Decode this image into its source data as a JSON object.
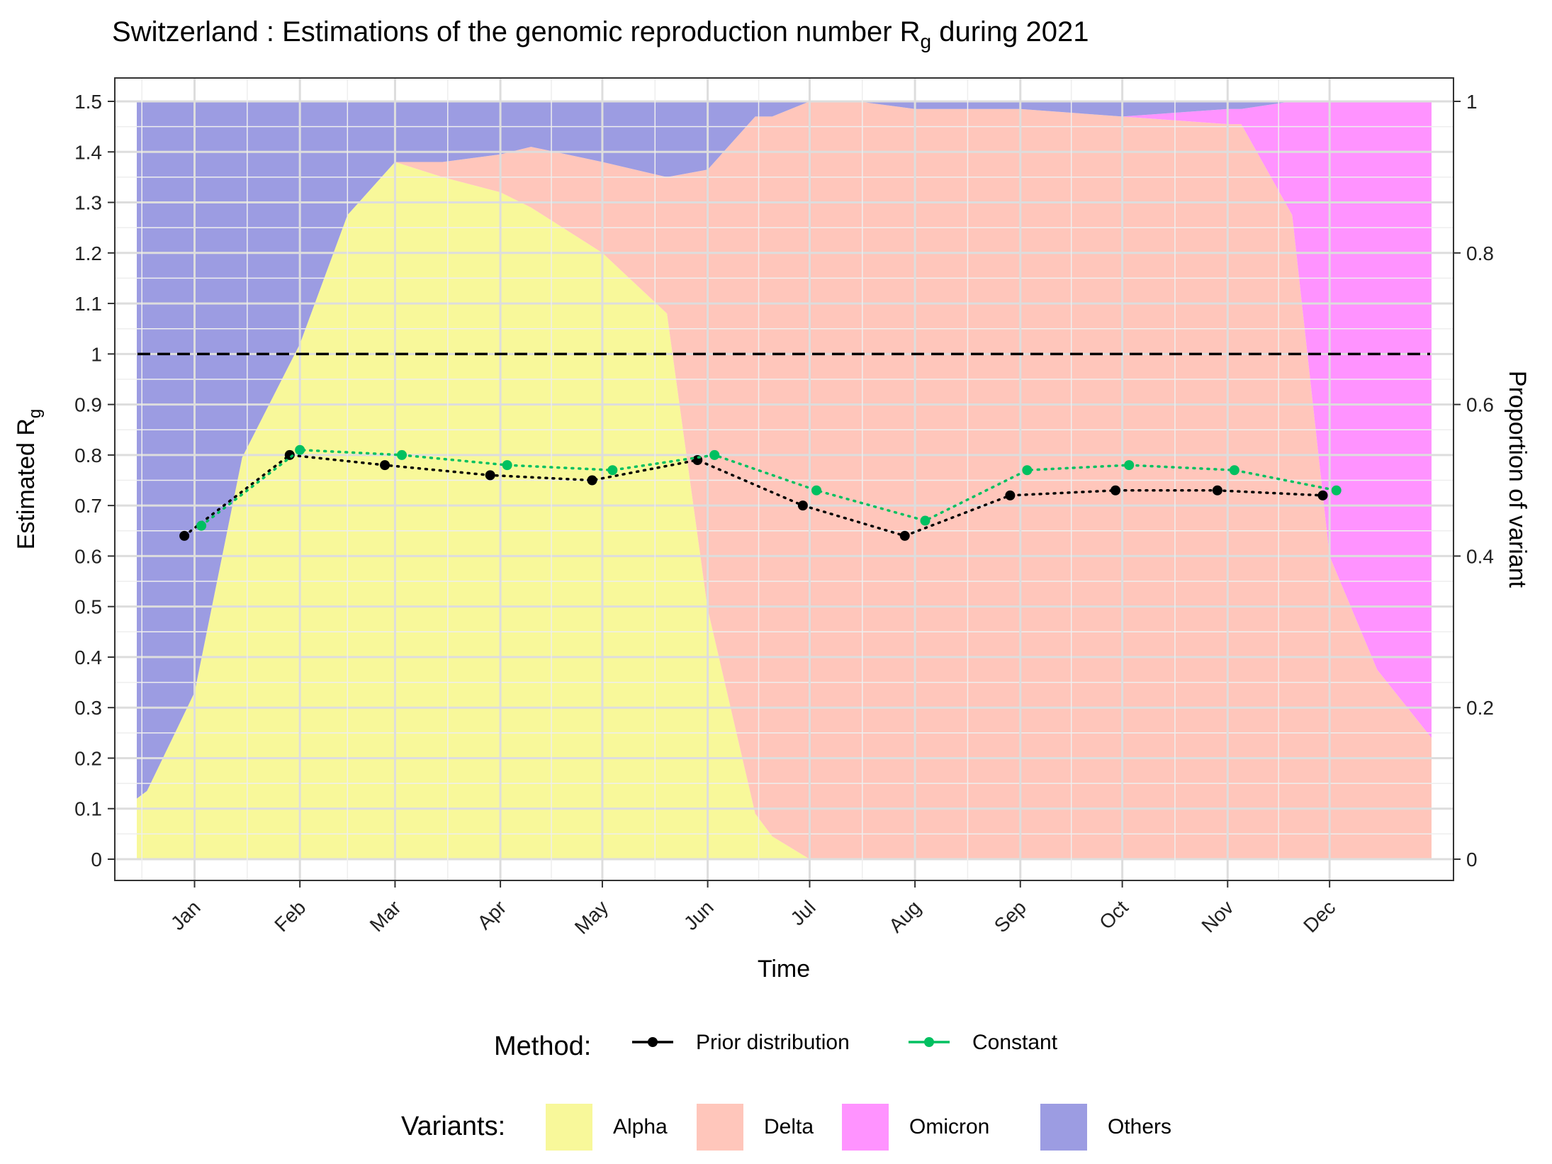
{
  "chart_data": {
    "type": "line",
    "title": "Switzerland : Estimations of the genomic reproduction number R",
    "title_subscript": "g",
    "title_suffix": " during 2021",
    "xlabel": "Time",
    "ylabel": "Estimated R",
    "ylabel_subscript": "g",
    "y2label": "Proportion of variant",
    "ylim": [
      0,
      1.5
    ],
    "y2lim": [
      0,
      1
    ],
    "yticks": [
      {
        "v": 0,
        "label": "0"
      },
      {
        "v": 0.1,
        "label": "0.1"
      },
      {
        "v": 0.2,
        "label": "0.2"
      },
      {
        "v": 0.3,
        "label": "0.3"
      },
      {
        "v": 0.4,
        "label": "0.4"
      },
      {
        "v": 0.5,
        "label": "0.5"
      },
      {
        "v": 0.6,
        "label": "0.6"
      },
      {
        "v": 0.7,
        "label": "0.7"
      },
      {
        "v": 0.8,
        "label": "0.8"
      },
      {
        "v": 0.9,
        "label": "0.9"
      },
      {
        "v": 1.0,
        "label": "1"
      },
      {
        "v": 1.1,
        "label": "1.1"
      },
      {
        "v": 1.2,
        "label": "1.2"
      },
      {
        "v": 1.3,
        "label": "1.3"
      },
      {
        "v": 1.4,
        "label": "1.4"
      },
      {
        "v": 1.5,
        "label": "1.5"
      }
    ],
    "y2ticks": [
      {
        "v": 0,
        "label": "0"
      },
      {
        "v": 0.2,
        "label": "0.2"
      },
      {
        "v": 0.4,
        "label": "0.4"
      },
      {
        "v": 0.6,
        "label": "0.6"
      },
      {
        "v": 0.8,
        "label": "0.8"
      },
      {
        "v": 1.0,
        "label": "1"
      }
    ],
    "xlim": [
      "2020-12-15",
      "2021-12-31"
    ],
    "xticks": [
      {
        "date": "2021-01-01",
        "label": "Jan"
      },
      {
        "date": "2021-02-01",
        "label": "Feb"
      },
      {
        "date": "2021-03-01",
        "label": "Mar"
      },
      {
        "date": "2021-04-01",
        "label": "Apr"
      },
      {
        "date": "2021-05-01",
        "label": "May"
      },
      {
        "date": "2021-06-01",
        "label": "Jun"
      },
      {
        "date": "2021-07-01",
        "label": "Jul"
      },
      {
        "date": "2021-08-01",
        "label": "Aug"
      },
      {
        "date": "2021-09-01",
        "label": "Sep"
      },
      {
        "date": "2021-10-01",
        "label": "Oct"
      },
      {
        "date": "2021-11-01",
        "label": "Nov"
      },
      {
        "date": "2021-12-01",
        "label": "Dec"
      }
    ],
    "reference_line": {
      "y": 1,
      "style": "dashed",
      "color": "#000000"
    },
    "series": [
      {
        "name": "Prior distribution",
        "color": "#000000",
        "dates": [
          "2020-12-29",
          "2021-01-29",
          "2021-02-26",
          "2021-03-29",
          "2021-04-28",
          "2021-05-29",
          "2021-06-29",
          "2021-07-29",
          "2021-08-29",
          "2021-09-29",
          "2021-10-29",
          "2021-11-29"
        ],
        "values": [
          0.64,
          0.8,
          0.78,
          0.76,
          0.75,
          0.79,
          0.7,
          0.64,
          0.72,
          0.73,
          0.73,
          0.72
        ]
      },
      {
        "name": "Constant",
        "color": "#00C060",
        "dates": [
          "2021-01-03",
          "2021-02-01",
          "2021-03-03",
          "2021-04-03",
          "2021-05-04",
          "2021-06-03",
          "2021-07-03",
          "2021-08-04",
          "2021-09-03",
          "2021-10-03",
          "2021-11-03",
          "2021-12-03"
        ],
        "values": [
          0.66,
          0.81,
          0.8,
          0.78,
          0.77,
          0.8,
          0.73,
          0.67,
          0.77,
          0.78,
          0.77,
          0.73
        ]
      }
    ],
    "variants": {
      "dates": [
        "2020-12-15",
        "2020-12-18",
        "2021-01-01",
        "2021-01-15",
        "2021-02-01",
        "2021-02-15",
        "2021-03-01",
        "2021-03-15",
        "2021-04-01",
        "2021-04-10",
        "2021-05-01",
        "2021-05-20",
        "2021-06-01",
        "2021-06-15",
        "2021-06-20",
        "2021-07-01",
        "2021-07-15",
        "2021-08-01",
        "2021-09-01",
        "2021-10-01",
        "2021-11-01",
        "2021-11-05",
        "2021-11-20",
        "2021-12-01",
        "2021-12-15",
        "2021-12-31"
      ],
      "layers": [
        {
          "name": "Alpha",
          "color": "#F8F89A",
          "values": [
            0.08,
            0.09,
            0.22,
            0.53,
            0.68,
            0.85,
            0.92,
            0.9,
            0.88,
            0.86,
            0.8,
            0.72,
            0.33,
            0.06,
            0.03,
            0.0,
            0.0,
            0.0,
            0.0,
            0.0,
            0.0,
            0.0,
            0.0,
            0.0,
            0.0,
            0.0
          ]
        },
        {
          "name": "Delta",
          "color": "#FFC6BB",
          "values": [
            0.0,
            0.0,
            0.0,
            0.0,
            0.0,
            0.0,
            0.0,
            0.02,
            0.05,
            0.08,
            0.12,
            0.18,
            0.58,
            0.92,
            0.95,
            1.0,
            1.0,
            0.99,
            0.99,
            0.98,
            0.97,
            0.97,
            0.85,
            0.4,
            0.25,
            0.16
          ]
        },
        {
          "name": "Omicron",
          "color": "#FF93FF",
          "values": [
            0.0,
            0.0,
            0.0,
            0.0,
            0.0,
            0.0,
            0.0,
            0.0,
            0.0,
            0.0,
            0.0,
            0.0,
            0.0,
            0.0,
            0.0,
            0.0,
            0.0,
            0.0,
            0.0,
            0.0,
            0.02,
            0.02,
            0.15,
            0.6,
            0.75,
            0.84
          ]
        },
        {
          "name": "Others",
          "color": "#9C9CE2",
          "values": [
            0.92,
            0.91,
            0.78,
            0.47,
            0.32,
            0.15,
            0.08,
            0.08,
            0.07,
            0.06,
            0.08,
            0.1,
            0.09,
            0.02,
            0.02,
            0.0,
            0.0,
            0.01,
            0.01,
            0.02,
            0.01,
            0.01,
            0.0,
            0.0,
            0.0,
            0.0
          ]
        }
      ]
    }
  },
  "legend": {
    "method_title": "Method:",
    "method_items": [
      {
        "label": "Prior distribution",
        "color": "#000000"
      },
      {
        "label": "Constant",
        "color": "#00C060"
      }
    ],
    "variants_title": "Variants:",
    "variant_items": [
      {
        "label": "Alpha",
        "color": "#F8F89A"
      },
      {
        "label": "Delta",
        "color": "#FFC6BB"
      },
      {
        "label": "Omicron",
        "color": "#FF93FF"
      },
      {
        "label": "Others",
        "color": "#9C9CE2"
      }
    ]
  }
}
